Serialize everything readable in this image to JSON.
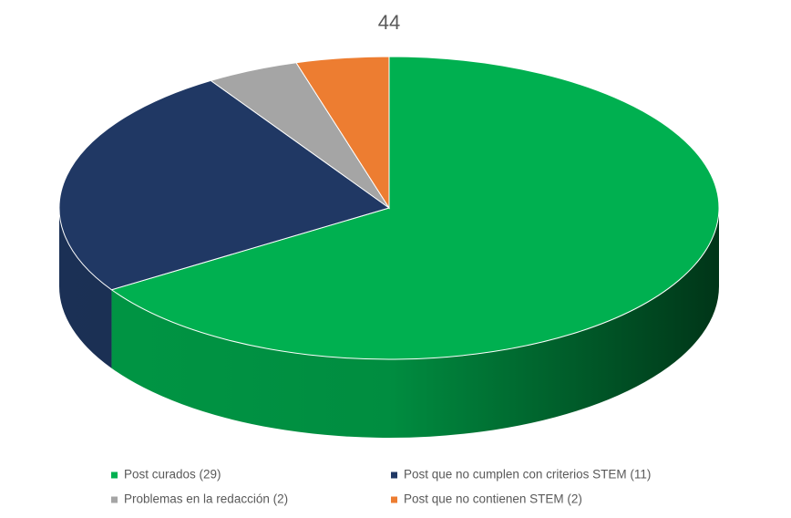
{
  "chart_data": {
    "type": "pie",
    "title": "44",
    "categories": [
      "Post curados (29)",
      "Post que no cumplen con criterios STEM (11)",
      "Problemas en la redacción (2)",
      "Post que no contienen STEM (2)"
    ],
    "values": [
      29,
      11,
      2,
      2
    ],
    "colors": [
      "#00b050",
      "#203864",
      "#a5a5a5",
      "#ed7d31"
    ],
    "legend": "bottom"
  }
}
